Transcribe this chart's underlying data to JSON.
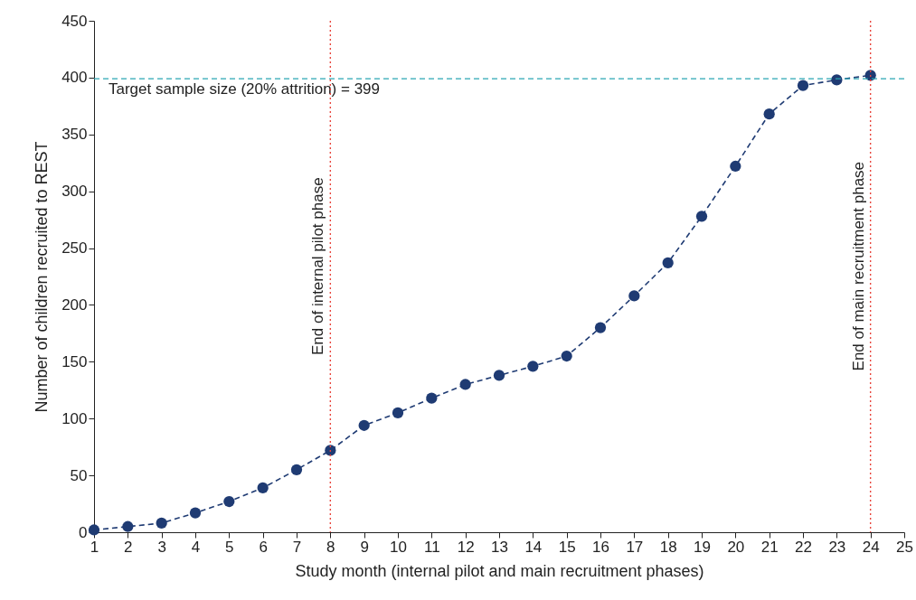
{
  "chart_data": {
    "type": "line",
    "xlabel": "Study month (internal pilot and main recruitment phases)",
    "ylabel": "Number of children recruited to REST",
    "x": [
      1,
      2,
      3,
      4,
      5,
      6,
      7,
      8,
      9,
      10,
      11,
      12,
      13,
      14,
      15,
      16,
      17,
      18,
      19,
      20,
      21,
      22,
      23,
      24
    ],
    "series": [
      {
        "color": "#1f3b73",
        "values": [
          2,
          5,
          8,
          17,
          27,
          39,
          55,
          72,
          94,
          105,
          118,
          130,
          138,
          146,
          155,
          180,
          208,
          237,
          278,
          322,
          368,
          393,
          398,
          402
        ]
      }
    ],
    "xlim": [
      1,
      25
    ],
    "xticks": [
      1,
      2,
      3,
      4,
      5,
      6,
      7,
      8,
      9,
      10,
      11,
      12,
      13,
      14,
      15,
      16,
      17,
      18,
      19,
      20,
      21,
      22,
      23,
      24,
      25
    ],
    "ylim": [
      0,
      450
    ],
    "yticks": [
      0,
      50,
      100,
      150,
      200,
      250,
      300,
      350,
      400,
      450
    ],
    "marker": "circle",
    "line_style": "dashed",
    "grid": false,
    "ref_lines": [
      {
        "axis": "y",
        "value": 399,
        "label": "Target sample size (20% attrition) = 399",
        "color": "#2aa6b4",
        "line_style": "dashed"
      },
      {
        "axis": "x",
        "value": 8,
        "label": "End of internal pilot phase",
        "color": "#e8453c",
        "line_style": "dotted"
      },
      {
        "axis": "x",
        "value": 24,
        "label": "End of main recruitment phase",
        "color": "#e8453c",
        "line_style": "dotted"
      }
    ]
  }
}
